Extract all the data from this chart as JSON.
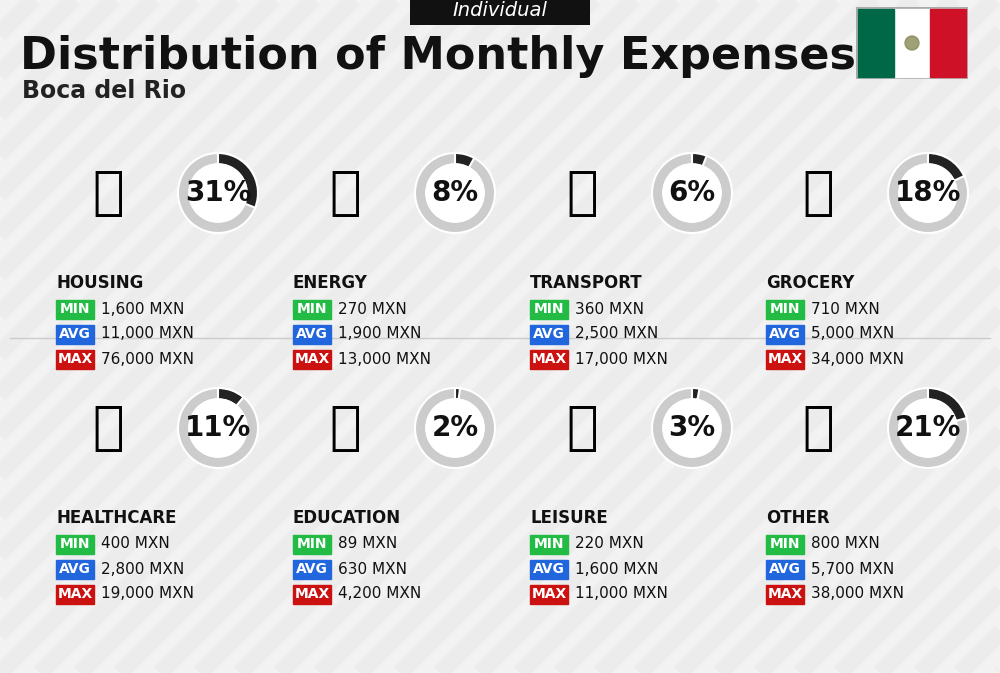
{
  "title": "Distribution of Monthly Expenses",
  "subtitle": "Boca del Rio",
  "tag": "Individual",
  "background_color": "#f2f2f2",
  "stripe_color": "#e8e8e8",
  "categories": [
    {
      "name": "HOUSING",
      "percent": 31,
      "min": "1,600 MXN",
      "avg": "11,000 MXN",
      "max": "76,000 MXN",
      "row": 0,
      "col": 0
    },
    {
      "name": "ENERGY",
      "percent": 8,
      "min": "270 MXN",
      "avg": "1,900 MXN",
      "max": "13,000 MXN",
      "row": 0,
      "col": 1
    },
    {
      "name": "TRANSPORT",
      "percent": 6,
      "min": "360 MXN",
      "avg": "2,500 MXN",
      "max": "17,000 MXN",
      "row": 0,
      "col": 2
    },
    {
      "name": "GROCERY",
      "percent": 18,
      "min": "710 MXN",
      "avg": "5,000 MXN",
      "max": "34,000 MXN",
      "row": 0,
      "col": 3
    },
    {
      "name": "HEALTHCARE",
      "percent": 11,
      "min": "400 MXN",
      "avg": "2,800 MXN",
      "max": "19,000 MXN",
      "row": 1,
      "col": 0
    },
    {
      "name": "EDUCATION",
      "percent": 2,
      "min": "89 MXN",
      "avg": "630 MXN",
      "max": "4,200 MXN",
      "row": 1,
      "col": 1
    },
    {
      "name": "LEISURE",
      "percent": 3,
      "min": "220 MXN",
      "avg": "1,600 MXN",
      "max": "11,000 MXN",
      "row": 1,
      "col": 2
    },
    {
      "name": "OTHER",
      "percent": 21,
      "min": "800 MXN",
      "avg": "5,700 MXN",
      "max": "38,000 MXN",
      "row": 1,
      "col": 3
    }
  ],
  "min_color": "#22bb44",
  "avg_color": "#2266dd",
  "max_color": "#cc1111",
  "arc_filled_color": "#222222",
  "arc_bg_color": "#cccccc",
  "title_fontsize": 32,
  "subtitle_fontsize": 17,
  "tag_fontsize": 14,
  "category_fontsize": 12,
  "value_fontsize": 11,
  "percent_fontsize": 20,
  "flag_green": "#006847",
  "flag_white": "#ffffff",
  "flag_red": "#ce1126"
}
